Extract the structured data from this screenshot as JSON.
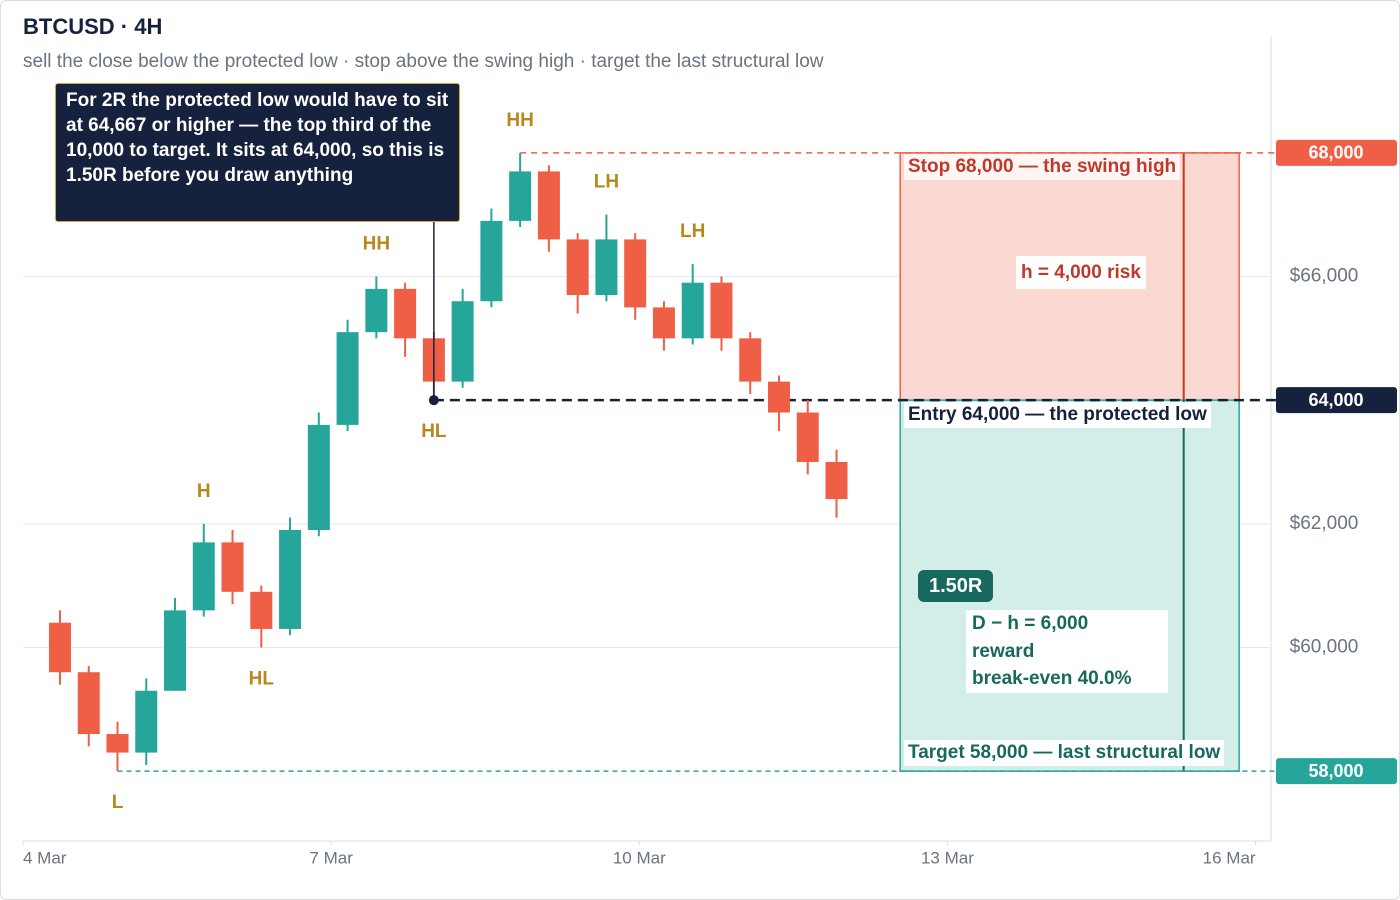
{
  "chart_data": {
    "type": "candlestick",
    "title": "BTCUSD · 4H",
    "subtitle": "sell the close below the protected low · stop above the swing high · target the last structural low",
    "up_color": "#26a69a",
    "down_color": "#ef5f45",
    "xlim": [
      0,
      12.15
    ],
    "xticks": [
      {
        "value": 0,
        "label": "4 Mar"
      },
      {
        "value": 3,
        "label": "7 Mar"
      },
      {
        "value": 6,
        "label": "10 Mar"
      },
      {
        "value": 9,
        "label": "13 Mar"
      },
      {
        "value": 12,
        "label": "16 Mar"
      }
    ],
    "ylim": [
      56870,
      69890
    ],
    "yticks": [
      {
        "value": 60000,
        "label": "$60,000"
      },
      {
        "value": 62000,
        "label": "$62,000"
      },
      {
        "value": 66000,
        "label": "$66,000"
      }
    ],
    "grid": true,
    "x": [
      0.36,
      0.64,
      0.92,
      1.2,
      1.48,
      1.76,
      2.04,
      2.32,
      2.6,
      2.88,
      3.16,
      3.44,
      3.72,
      4.0,
      4.28,
      4.56,
      4.84,
      5.12,
      5.4,
      5.68,
      5.96,
      6.24,
      6.52,
      6.8,
      7.08,
      7.36,
      7.64,
      7.92
    ],
    "open": [
      60400,
      59600,
      58600,
      58300,
      59300,
      60600,
      61700,
      60900,
      60300,
      61900,
      63600,
      65100,
      65800,
      65000,
      64300,
      65600,
      66900,
      67700,
      66600,
      65700,
      66600,
      65500,
      65000,
      65900,
      65000,
      64300,
      63800,
      63000
    ],
    "high": [
      60600,
      59700,
      58800,
      59500,
      60800,
      62000,
      61900,
      61000,
      62100,
      63800,
      65300,
      66000,
      65900,
      65100,
      65800,
      67100,
      68000,
      67800,
      66700,
      67000,
      66700,
      65600,
      66200,
      66000,
      65100,
      64400,
      64000,
      63200
    ],
    "low": [
      59400,
      58400,
      58000,
      58100,
      59300,
      60500,
      60700,
      60000,
      60200,
      61800,
      63500,
      65000,
      64700,
      64000,
      64200,
      65500,
      66800,
      66400,
      65400,
      65600,
      65300,
      64800,
      64900,
      64800,
      64100,
      63500,
      62800,
      62100
    ],
    "close": [
      59600,
      58600,
      58300,
      59300,
      60600,
      61700,
      60900,
      60300,
      61900,
      63600,
      65100,
      65800,
      65000,
      64300,
      65600,
      66900,
      67700,
      66600,
      65700,
      66600,
      65500,
      65000,
      65900,
      65000,
      64300,
      63800,
      63000,
      62400
    ],
    "swing_labels": [
      {
        "text": "L",
        "x": 0.92,
        "price": 58000,
        "position": "below"
      },
      {
        "text": "H",
        "x": 1.76,
        "price": 62000,
        "position": "above"
      },
      {
        "text": "HL",
        "x": 2.32,
        "price": 60000,
        "position": "below"
      },
      {
        "text": "HH",
        "x": 3.44,
        "price": 66000,
        "position": "above"
      },
      {
        "text": "HL",
        "x": 4.0,
        "price": 64000,
        "position": "below"
      },
      {
        "text": "HH",
        "x": 4.84,
        "price": 68000,
        "position": "above"
      },
      {
        "text": "LH",
        "x": 5.68,
        "price": 67000,
        "position": "above"
      },
      {
        "text": "LH",
        "x": 6.52,
        "price": 66200,
        "position": "above"
      }
    ],
    "annotation": {
      "text": "For 2R the protected low would have to sit at 64,667 or higher — the top third of the 10,000 to target. It sits at 64,000, so this is 1.50R before you draw anything",
      "x": 4.0,
      "price": 64000
    },
    "trade": {
      "x_start": 8.54,
      "x_end": 11.84,
      "marker_x": 11.3,
      "stop": 68000,
      "entry": 64000,
      "target": 58000,
      "stop_from_x": 4.84,
      "entry_from_x": 4.0,
      "target_from_x": 0.92,
      "stop_label": "Stop 68,000 — the swing high",
      "entry_label": "Entry 64,000 — the protected low",
      "target_label": "Target 58,000 — last structural low",
      "risk_label": "h = 4,000 risk",
      "reward_label": "D − h = 6,000 reward",
      "breakeven_label": "break-even 40.0%",
      "r_label": "1.50R",
      "stop_tag": "68,000",
      "entry_tag": "64,000",
      "target_tag": "58,000",
      "stop_color": "#ef5f45",
      "entry_color": "#16213e",
      "target_color": "#26a69a"
    }
  }
}
